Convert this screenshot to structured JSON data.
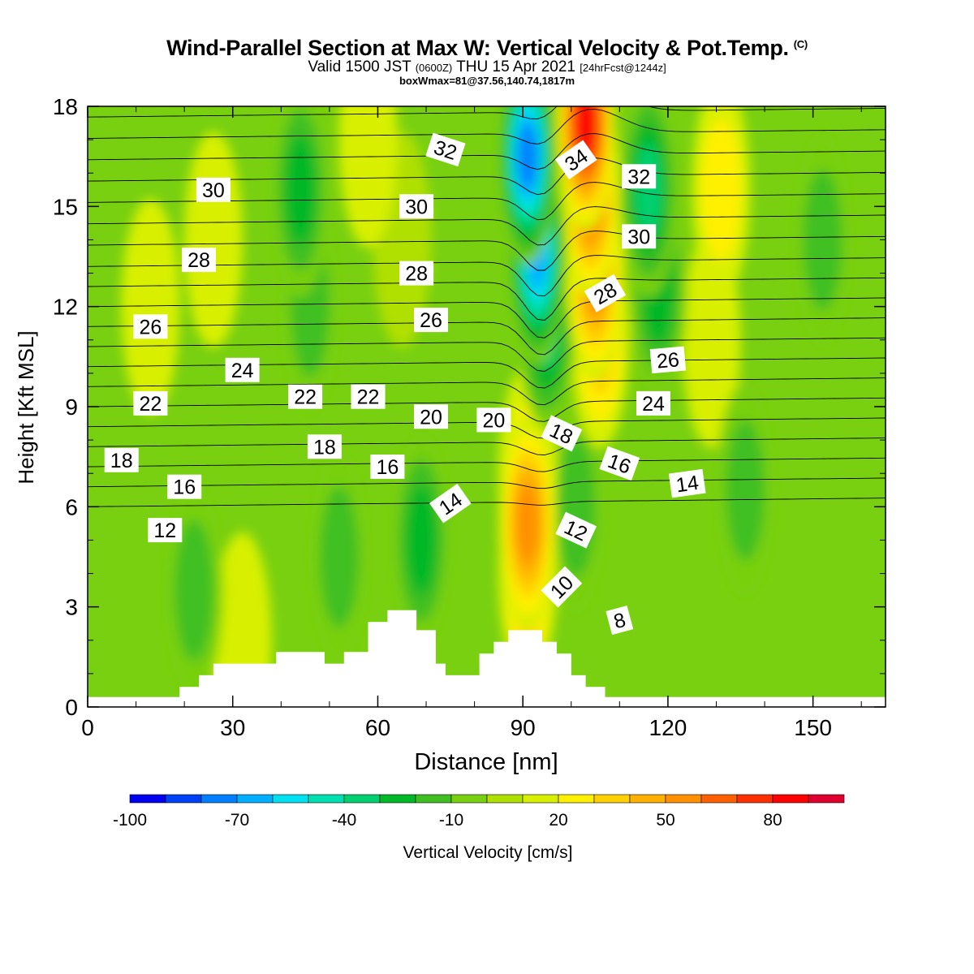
{
  "title": {
    "main": "Wind-Parallel Section at Max W: Vertical Velocity & Pot.Temp.",
    "main_tag": "(C)",
    "valid_prefix": "Valid 1500 JST",
    "valid_zulu": "(0600Z)",
    "valid_date": "THU 15 Apr 2021",
    "forecast_tag": "[24hrFcst@1244z]",
    "box_info": "boxWmax=81@37.56,140.74,1817m"
  },
  "colors": {
    "palette": [
      "#0000f0",
      "#0040f8",
      "#0080ff",
      "#00b0ff",
      "#00e0f0",
      "#00e0b0",
      "#00d070",
      "#00b828",
      "#40c020",
      "#78d010",
      "#b0e000",
      "#d8f000",
      "#fff000",
      "#ffd000",
      "#ffb000",
      "#ff9000",
      "#ff6000",
      "#ff3000",
      "#ff0000",
      "#e00030",
      "#b00050",
      "#800070",
      "#500090"
    ],
    "terrain": "#ffffff",
    "contour": "#000000"
  },
  "chart_data": {
    "type": "heatmap",
    "xlabel": "Distance [nm]",
    "ylabel": "Height [Kft MSL]",
    "xlim": [
      0,
      165
    ],
    "ylim": [
      0,
      18
    ],
    "xticks": [
      0,
      30,
      60,
      90,
      120,
      150
    ],
    "yticks": [
      0,
      3,
      6,
      9,
      12,
      15,
      18
    ],
    "colorbar": {
      "label": "Vertical Velocity [cm/s]",
      "tick_labels": [
        "-100",
        "-70",
        "-40",
        "-10",
        "20",
        "50",
        "80"
      ],
      "tick_values": [
        -100,
        -70,
        -40,
        -10,
        20,
        50,
        80
      ],
      "min": -100,
      "max": 90,
      "step": 10
    },
    "vertical_velocity": {
      "units": "cm/s",
      "max_value": 81,
      "features": [
        {
          "x": 91,
          "height": 16.5,
          "w": -85
        },
        {
          "x": 93,
          "height": 13.5,
          "w": -70
        },
        {
          "x": 95,
          "height": 11.5,
          "w": -45
        },
        {
          "x": 103,
          "height": 17.5,
          "w": 81
        },
        {
          "x": 104,
          "height": 15.5,
          "w": 65
        },
        {
          "x": 105,
          "height": 13.0,
          "w": 50
        },
        {
          "x": 106,
          "height": 11.0,
          "w": 30
        },
        {
          "x": 91,
          "height": 5.5,
          "w": 55
        },
        {
          "x": 91,
          "height": 4.0,
          "w": 40
        },
        {
          "x": 91,
          "height": 7.0,
          "w": 25
        },
        {
          "x": 116,
          "height": 15.5,
          "w": -45
        },
        {
          "x": 118,
          "height": 12.5,
          "w": -30
        },
        {
          "x": 44,
          "height": 15.5,
          "w": -30
        },
        {
          "x": 46,
          "height": 12.0,
          "w": -20
        },
        {
          "x": 101,
          "height": 6.0,
          "w": -20
        },
        {
          "x": 69,
          "height": 5.0,
          "w": -30
        },
        {
          "x": 52,
          "height": 4.5,
          "w": -25
        },
        {
          "x": 22,
          "height": 3.5,
          "w": -20
        },
        {
          "x": 136,
          "height": 6.5,
          "w": -20
        },
        {
          "x": 152,
          "height": 14.0,
          "w": -20
        },
        {
          "x": 26,
          "height": 14.0,
          "w": 10
        },
        {
          "x": 131,
          "height": 15.5,
          "w": 20
        },
        {
          "x": 129,
          "height": 11.0,
          "w": 10
        },
        {
          "x": 32,
          "height": 2.0,
          "w": 10
        },
        {
          "x": 13,
          "height": 12.0,
          "w": 10
        },
        {
          "x": 58,
          "height": 17.0,
          "w": 15
        },
        {
          "x": 65,
          "height": 14.0,
          "w": 8
        }
      ]
    },
    "potential_temperature": {
      "units": "C",
      "interval": 1,
      "levels_range": [
        6,
        35
      ],
      "labels": [
        {
          "text": "8",
          "x": 110,
          "height": 2.6,
          "angle": -15
        },
        {
          "text": "10",
          "x": 98,
          "height": 3.6,
          "angle": -45
        },
        {
          "text": "12",
          "x": 16,
          "height": 5.3,
          "angle": 0
        },
        {
          "text": "12",
          "x": 101,
          "height": 5.3,
          "angle": 25
        },
        {
          "text": "14",
          "x": 75,
          "height": 6.1,
          "angle": -35
        },
        {
          "text": "14",
          "x": 124,
          "height": 6.7,
          "angle": -8
        },
        {
          "text": "16",
          "x": 20,
          "height": 6.6,
          "angle": 0
        },
        {
          "text": "16",
          "x": 62,
          "height": 7.2,
          "angle": 0
        },
        {
          "text": "16",
          "x": 110,
          "height": 7.3,
          "angle": 20
        },
        {
          "text": "18",
          "x": 7,
          "height": 7.4,
          "angle": 0
        },
        {
          "text": "18",
          "x": 49,
          "height": 7.8,
          "angle": 0
        },
        {
          "text": "18",
          "x": 98,
          "height": 8.2,
          "angle": 25
        },
        {
          "text": "20",
          "x": 71,
          "height": 8.7,
          "angle": 0
        },
        {
          "text": "20",
          "x": 84,
          "height": 8.6,
          "angle": 0
        },
        {
          "text": "22",
          "x": 13,
          "height": 9.1,
          "angle": 0
        },
        {
          "text": "22",
          "x": 45,
          "height": 9.3,
          "angle": 0
        },
        {
          "text": "22",
          "x": 58,
          "height": 9.3,
          "angle": 0
        },
        {
          "text": "24",
          "x": 32,
          "height": 10.1,
          "angle": 0
        },
        {
          "text": "24",
          "x": 117,
          "height": 9.1,
          "angle": 0
        },
        {
          "text": "26",
          "x": 13,
          "height": 11.4,
          "angle": 0
        },
        {
          "text": "26",
          "x": 71,
          "height": 11.6,
          "angle": 0
        },
        {
          "text": "26",
          "x": 120,
          "height": 10.4,
          "angle": -5
        },
        {
          "text": "28",
          "x": 23,
          "height": 13.4,
          "angle": 0
        },
        {
          "text": "28",
          "x": 68,
          "height": 13.0,
          "angle": 0
        },
        {
          "text": "28",
          "x": 107,
          "height": 12.4,
          "angle": -30
        },
        {
          "text": "30",
          "x": 26,
          "height": 15.5,
          "angle": 0
        },
        {
          "text": "30",
          "x": 68,
          "height": 15.0,
          "angle": 0
        },
        {
          "text": "30",
          "x": 114,
          "height": 14.1,
          "angle": 0
        },
        {
          "text": "32",
          "x": 74,
          "height": 16.7,
          "angle": 18
        },
        {
          "text": "32",
          "x": 114,
          "height": 15.9,
          "angle": 0
        },
        {
          "text": "34",
          "x": 101,
          "height": 16.4,
          "angle": -35
        }
      ]
    },
    "terrain": {
      "x": [
        0,
        17,
        19,
        19,
        20,
        20,
        23,
        23,
        26,
        26,
        39,
        39,
        49,
        49,
        53,
        53,
        58,
        58,
        62,
        62,
        66,
        66,
        68,
        68,
        72,
        72,
        74,
        74,
        81,
        81,
        84,
        84,
        87,
        87,
        94,
        94,
        97,
        97,
        100,
        100,
        103,
        103,
        107,
        107,
        165
      ],
      "height": [
        0.3,
        0.3,
        0.3,
        0.6,
        0.6,
        0.6,
        0.6,
        0.95,
        0.95,
        1.3,
        1.3,
        1.65,
        1.65,
        1.3,
        1.3,
        1.65,
        1.65,
        2.55,
        2.55,
        2.9,
        2.9,
        2.9,
        2.9,
        2.3,
        2.3,
        1.3,
        1.3,
        0.95,
        0.95,
        1.6,
        1.6,
        1.95,
        1.95,
        2.3,
        2.3,
        1.95,
        1.95,
        1.6,
        1.6,
        0.95,
        0.95,
        0.6,
        0.6,
        0.3,
        0.3
      ]
    }
  }
}
